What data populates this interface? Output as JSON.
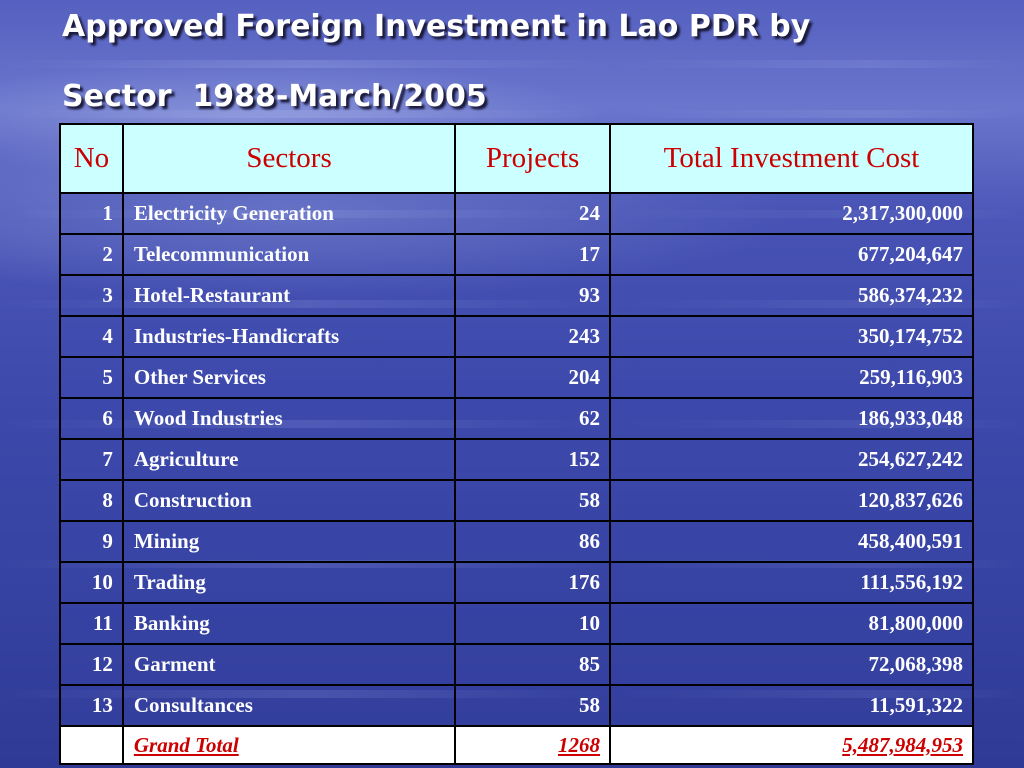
{
  "title": {
    "line1": "Approved Foreign Investment in Lao PDR by",
    "line2": "Sector  1988-March/2005"
  },
  "table": {
    "headers": [
      "No",
      "Sectors",
      "Projects",
      "Total Investment Cost"
    ],
    "rows": [
      [
        "1",
        "Electricity Generation",
        "24",
        "2,317,300,000"
      ],
      [
        "2",
        "Telecommunication",
        "17",
        "677,204,647"
      ],
      [
        "3",
        "Hotel-Restaurant",
        "93",
        "586,374,232"
      ],
      [
        "4",
        "Industries-Handicrafts",
        "243",
        "350,174,752"
      ],
      [
        "5",
        "Other Services",
        "204",
        "259,116,903"
      ],
      [
        "6",
        "Wood Industries",
        "62",
        "186,933,048"
      ],
      [
        "7",
        "Agriculture",
        "152",
        "254,627,242"
      ],
      [
        "8",
        "Construction",
        "58",
        "120,837,626"
      ],
      [
        "9",
        "Mining",
        "86",
        "458,400,591"
      ],
      [
        "10",
        "Trading",
        "176",
        "111,556,192"
      ],
      [
        "11",
        "Banking",
        "10",
        "81,800,000"
      ],
      [
        "12",
        "Garment",
        "85",
        "72,068,398"
      ],
      [
        "13",
        "Consultances",
        "58",
        "11,591,322"
      ]
    ],
    "total": {
      "no": "",
      "label": "Grand Total",
      "projects": "1268",
      "cost": "5,487,984,953"
    }
  },
  "colors": {
    "header_bg": "#ccffff",
    "header_text": "#cc0000",
    "body_text": "#ffffff",
    "total_text": "#cc0000"
  }
}
